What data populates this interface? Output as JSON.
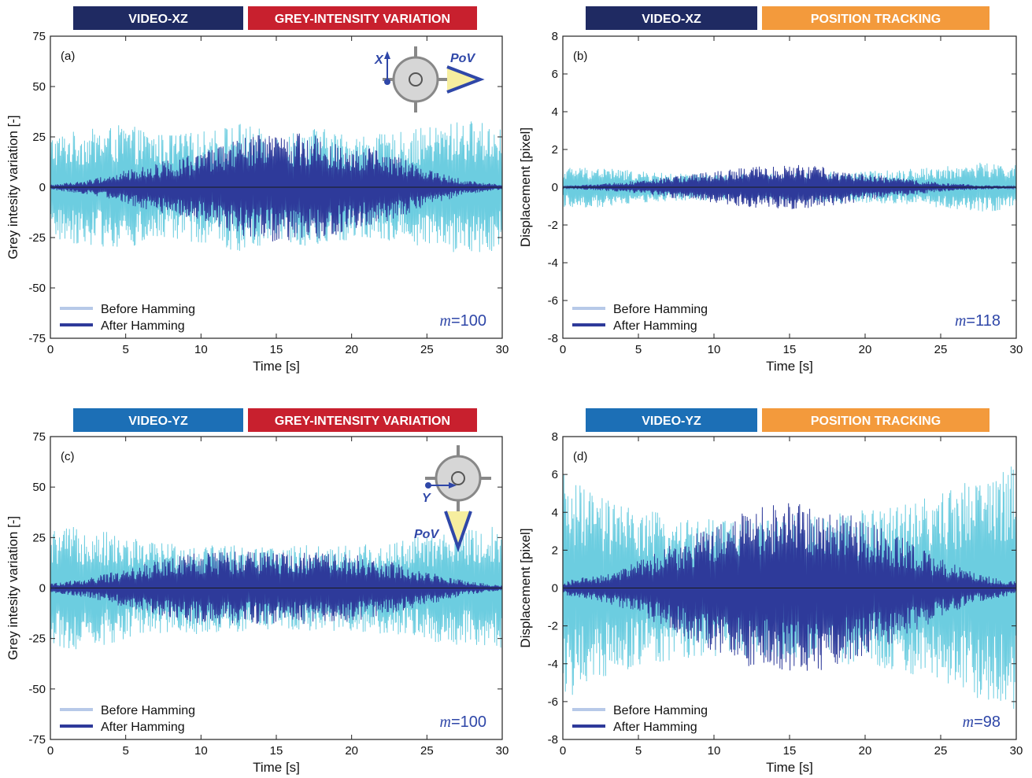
{
  "colors": {
    "before": "#6CCDE0",
    "after": "#2E3A9A",
    "legend_before": "#B7C9E8",
    "label_blue": "#2F47A8",
    "video_xz": "#1F2A62",
    "video_yz": "#1C6FB6",
    "grey_intensity": "#C8202E",
    "position_tracking": "#F39A3C",
    "pov_fill": "#F6EE9F",
    "camera_body": "#D6D6D6",
    "camera_frame": "#888888"
  },
  "chart_data": [
    {
      "id": "a",
      "type": "line",
      "panel_label": "(a)",
      "banners": [
        {
          "text": "VIDEO-XZ",
          "color_key": "video_xz"
        },
        {
          "text": "GREY-INTENSITY VARIATION",
          "color_key": "grey_intensity"
        }
      ],
      "xlabel": "Time [s]",
      "ylabel": "Grey intesity variation [-]",
      "xlim": [
        0,
        30
      ],
      "ylim": [
        -75,
        75
      ],
      "xticks": [
        "0",
        "5",
        "10",
        "15",
        "20",
        "25",
        "30"
      ],
      "yticks": [
        "-75",
        "-50",
        "-25",
        "0",
        "25",
        "50",
        "75"
      ],
      "grid": false,
      "legend_position": "bottom-left",
      "legend": [
        "Before Hamming",
        "After Hamming"
      ],
      "annotation_italic": "m",
      "annotation_value": "=100",
      "inset": {
        "axis_label": "X",
        "pov_label": "PoV"
      },
      "series": [
        {
          "name": "Before Hamming",
          "x": [
            0,
            2.5,
            5,
            7.5,
            10,
            12.5,
            15,
            17.5,
            20,
            22.5,
            25,
            27.5,
            30
          ],
          "envelope": [
            22,
            24,
            26,
            22,
            23,
            27,
            22,
            25,
            22,
            22,
            25,
            28,
            26
          ]
        },
        {
          "name": "After Hamming",
          "x": [
            0,
            2.5,
            5,
            7.5,
            10,
            12.5,
            15,
            17.5,
            20,
            22.5,
            25,
            27.5,
            30
          ],
          "envelope": [
            1,
            3,
            7,
            11,
            14,
            20,
            23,
            22,
            18,
            14,
            8,
            3,
            1
          ]
        }
      ]
    },
    {
      "id": "b",
      "type": "line",
      "panel_label": "(b)",
      "banners": [
        {
          "text": "VIDEO-XZ",
          "color_key": "video_xz"
        },
        {
          "text": "POSITION TRACKING",
          "color_key": "position_tracking"
        }
      ],
      "xlabel": "Time [s]",
      "ylabel": "Displacement [pixel]",
      "xlim": [
        0,
        30
      ],
      "ylim": [
        -8,
        8
      ],
      "xticks": [
        "0",
        "5",
        "10",
        "15",
        "20",
        "25",
        "30"
      ],
      "yticks": [
        "-8",
        "-6",
        "-4",
        "-2",
        "0",
        "2",
        "4",
        "6",
        "8"
      ],
      "grid": false,
      "legend_position": "bottom-left",
      "legend": [
        "Before Hamming",
        "After Hamming"
      ],
      "annotation_italic": "m",
      "annotation_value": "=118",
      "series": [
        {
          "name": "Before Hamming",
          "x": [
            0,
            2.5,
            5,
            7.5,
            10,
            12.5,
            15,
            17.5,
            20,
            22.5,
            25,
            27.5,
            30
          ],
          "envelope": [
            0.9,
            0.9,
            0.7,
            0.6,
            0.6,
            0.6,
            0.6,
            0.7,
            0.7,
            0.8,
            0.9,
            1.1,
            1.0
          ]
        },
        {
          "name": "After Hamming",
          "x": [
            0,
            2.5,
            5,
            7.5,
            10,
            12.5,
            15,
            17.5,
            20,
            22.5,
            25,
            27.5,
            30
          ],
          "envelope": [
            0.05,
            0.15,
            0.3,
            0.5,
            0.7,
            0.9,
            1.0,
            0.9,
            0.6,
            0.4,
            0.2,
            0.1,
            0.05
          ]
        }
      ]
    },
    {
      "id": "c",
      "type": "line",
      "panel_label": "(c)",
      "banners": [
        {
          "text": "VIDEO-YZ",
          "color_key": "video_yz"
        },
        {
          "text": "GREY-INTENSITY VARIATION",
          "color_key": "grey_intensity"
        }
      ],
      "xlabel": "Time [s]",
      "ylabel": "Grey intesity variation [-]",
      "xlim": [
        0,
        30
      ],
      "ylim": [
        -75,
        75
      ],
      "xticks": [
        "0",
        "5",
        "10",
        "15",
        "20",
        "25",
        "30"
      ],
      "yticks": [
        "-75",
        "-50",
        "-25",
        "0",
        "25",
        "50",
        "75"
      ],
      "grid": false,
      "legend_position": "bottom-left",
      "legend": [
        "Before Hamming",
        "After Hamming"
      ],
      "annotation_italic": "m",
      "annotation_value": "=100",
      "inset": {
        "axis_label": "Y",
        "pov_label": "PoV"
      },
      "series": [
        {
          "name": "Before Hamming",
          "x": [
            0,
            2.5,
            5,
            7.5,
            10,
            12.5,
            15,
            17.5,
            20,
            22.5,
            25,
            27.5,
            30
          ],
          "envelope": [
            24,
            26,
            21,
            19,
            19,
            18,
            17,
            18,
            18,
            19,
            22,
            24,
            26
          ]
        },
        {
          "name": "After Hamming",
          "x": [
            0,
            2.5,
            5,
            7.5,
            10,
            12.5,
            15,
            17.5,
            20,
            22.5,
            25,
            27.5,
            30
          ],
          "envelope": [
            2,
            4,
            8,
            12,
            15,
            15,
            15,
            15,
            14,
            11,
            7,
            3,
            1
          ]
        }
      ]
    },
    {
      "id": "d",
      "type": "line",
      "panel_label": "(d)",
      "banners": [
        {
          "text": "VIDEO-YZ",
          "color_key": "video_yz"
        },
        {
          "text": "POSITION TRACKING",
          "color_key": "position_tracking"
        }
      ],
      "xlabel": "Time [s]",
      "ylabel": "Displacement [pixel]",
      "xlim": [
        0,
        30
      ],
      "ylim": [
        -8,
        8
      ],
      "xticks": [
        "0",
        "5",
        "10",
        "15",
        "20",
        "25",
        "30"
      ],
      "yticks": [
        "-8",
        "-6",
        "-4",
        "-2",
        "0",
        "2",
        "4",
        "6",
        "8"
      ],
      "grid": false,
      "legend_position": "bottom-left",
      "legend": [
        "Before Hamming",
        "After Hamming"
      ],
      "annotation_italic": "m",
      "annotation_value": "=98",
      "series": [
        {
          "name": "Before Hamming",
          "x": [
            0,
            2.5,
            5,
            7.5,
            10,
            12.5,
            15,
            17.5,
            20,
            22.5,
            25,
            27.5,
            30
          ],
          "envelope": [
            5.0,
            4.0,
            3.5,
            3.2,
            3.0,
            3.0,
            3.2,
            3.3,
            3.5,
            3.7,
            4.2,
            5.0,
            5.5
          ]
        },
        {
          "name": "After Hamming",
          "x": [
            0,
            2.5,
            5,
            7.5,
            10,
            12.5,
            15,
            17.5,
            20,
            22.5,
            25,
            27.5,
            30
          ],
          "envelope": [
            0.3,
            0.6,
            1.2,
            2.0,
            2.8,
            3.5,
            3.8,
            3.6,
            3.0,
            2.2,
            1.3,
            0.6,
            0.3
          ]
        }
      ]
    }
  ]
}
